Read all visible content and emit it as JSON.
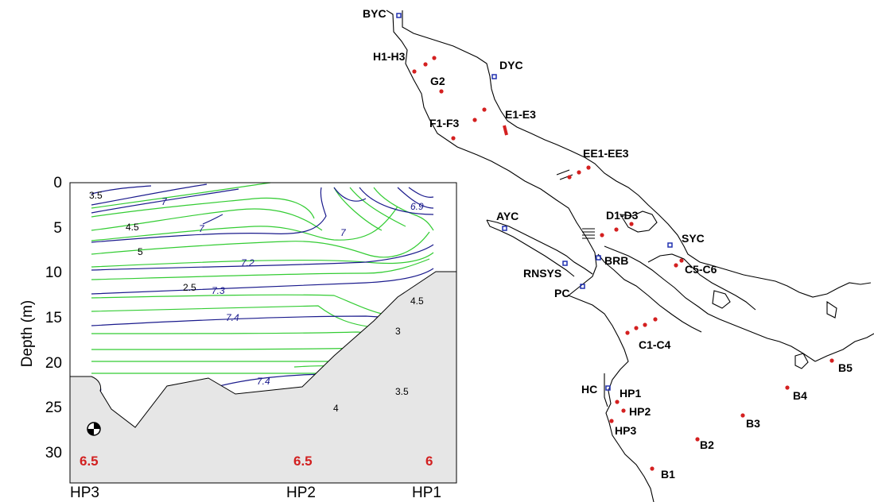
{
  "section_plot": {
    "ylabel": "Depth (m)",
    "y_ticks": [
      "0",
      "5",
      "10",
      "15",
      "20",
      "25",
      "30"
    ],
    "x_station_labels": [
      "HP3",
      "HP2",
      "HP1"
    ],
    "bottom_values": [
      "6.5",
      "6.5",
      "6"
    ],
    "black_contour_labels": [
      "4.5",
      "5",
      "2.5",
      "3",
      "4.5",
      "3.5",
      "4",
      "3.5"
    ],
    "blue_contour_labels": [
      "7",
      "7",
      "7.2",
      "7.3",
      "7.4",
      "7.4",
      "7",
      "6.9"
    ],
    "colors": {
      "black_contours": "#1a1a8c",
      "green_contours": "#33cc33",
      "seafloor_fill": "#e6e6e6",
      "value_text": "#d22020"
    }
  },
  "map": {
    "labels": {
      "byc": "BYC",
      "h1h3": "H1-H3",
      "dyc": "DYC",
      "g2": "G2",
      "e1e3": "E1-E3",
      "f1f3": "F1-F3",
      "ee1ee3": "EE1-EE3",
      "ayc": "AYC",
      "d1d3": "D1-D3",
      "syc": "SYC",
      "brb": "BRB",
      "c5c6": "C5-C6",
      "rnsys": "RNSYS",
      "pc": "PC",
      "c1c4": "C1-C4",
      "hc": "HC",
      "hp1": "HP1",
      "hp2": "HP2",
      "hp3": "HP3",
      "b1": "B1",
      "b2": "B2",
      "b3": "B3",
      "b4": "B4",
      "b5": "B5"
    },
    "colors": {
      "coast": "#000000",
      "station_dot": "#d42020",
      "yacht_club_marker": "#2030b0"
    }
  }
}
